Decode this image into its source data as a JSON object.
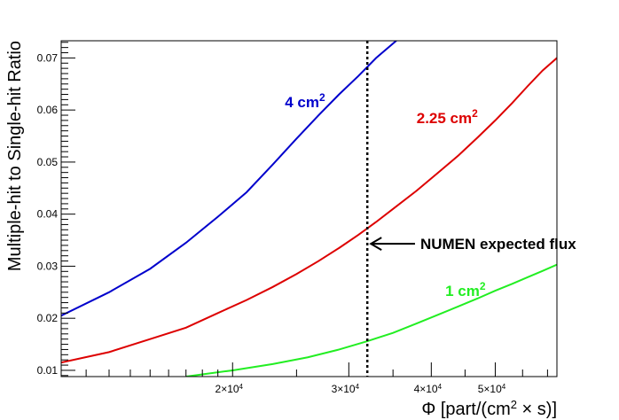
{
  "chart_data": {
    "type": "line",
    "x_scale": "log",
    "xlim": [
      11000,
      62000
    ],
    "ylim": [
      0.0088,
      0.0733
    ],
    "xlabel": {
      "main": "Φ [part/(cm",
      "sup": "2",
      "tail": " × s)]"
    },
    "ylabel": "Multiple-hit to Single-hit Ratio",
    "grid": false,
    "x_ticks": [
      {
        "value": 20000,
        "mantissa": "2×10",
        "exp": "4"
      },
      {
        "value": 30000,
        "mantissa": "3×10",
        "exp": "4"
      },
      {
        "value": 40000,
        "mantissa": "4×10",
        "exp": "4"
      },
      {
        "value": 50000,
        "mantissa": "5×10",
        "exp": "4"
      }
    ],
    "y_ticks": [
      {
        "value": 0.01,
        "label": "0.01"
      },
      {
        "value": 0.02,
        "label": "0.02"
      },
      {
        "value": 0.03,
        "label": "0.03"
      },
      {
        "value": 0.04,
        "label": "0.04"
      },
      {
        "value": 0.05,
        "label": "0.05"
      },
      {
        "value": 0.06,
        "label": "0.06"
      },
      {
        "value": 0.07,
        "label": "0.07"
      }
    ],
    "series": [
      {
        "id": "4cm2",
        "label_main": "4 cm",
        "label_sup": "2",
        "color": "#0000cc",
        "x": [
          11000,
          13000,
          15000,
          17000,
          19000,
          21000,
          23000,
          25000,
          27000,
          29000,
          31000,
          33000,
          35400
        ],
        "y": [
          0.0205,
          0.025,
          0.0295,
          0.0345,
          0.0395,
          0.0442,
          0.0495,
          0.0545,
          0.059,
          0.063,
          0.0665,
          0.07,
          0.0733
        ]
      },
      {
        "id": "2.25cm2",
        "label_main": "2.25 cm",
        "label_sup": "2",
        "color": "#dd0000",
        "x": [
          11000,
          13000,
          15000,
          17000,
          19000,
          21000,
          23000,
          25000,
          27000,
          29000,
          31000,
          33000,
          35000,
          38000,
          41000,
          44000,
          47000,
          50000,
          53000,
          56000,
          59000,
          62000
        ],
        "y": [
          0.0115,
          0.0135,
          0.016,
          0.0182,
          0.021,
          0.0235,
          0.026,
          0.0285,
          0.031,
          0.0335,
          0.036,
          0.0385,
          0.041,
          0.0445,
          0.048,
          0.0513,
          0.0547,
          0.058,
          0.0613,
          0.0646,
          0.0676,
          0.07
        ]
      },
      {
        "id": "1cm2",
        "label_main": "1 cm",
        "label_sup": "2",
        "color": "#22ee22",
        "x": [
          17000,
          20000,
          23000,
          26000,
          29000,
          32000,
          35000,
          38000,
          41000,
          44000,
          47000,
          50000,
          53000,
          56000,
          59000,
          62000
        ],
        "y": [
          0.0088,
          0.01,
          0.0112,
          0.0125,
          0.014,
          0.0156,
          0.0172,
          0.019,
          0.0207,
          0.0223,
          0.0238,
          0.0253,
          0.0266,
          0.0279,
          0.0291,
          0.0303
        ]
      }
    ],
    "series_labels": [
      {
        "series": "4cm2",
        "x": 24000,
        "y": 0.0605
      },
      {
        "series": "2.25cm2",
        "x": 38000,
        "y": 0.0575
      },
      {
        "series": "1cm2",
        "x": 42000,
        "y": 0.0243
      }
    ],
    "vline": {
      "x": 32000,
      "style": "dotted"
    },
    "annotation": {
      "text": "NUMEN expected flux",
      "x": 32400,
      "y": 0.0343,
      "text_x": 38500
    }
  }
}
